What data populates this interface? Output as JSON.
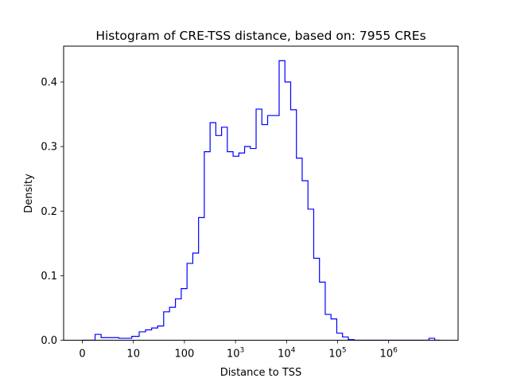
{
  "chart_data": {
    "type": "histogram",
    "title": "Histogram of CRE-TSS distance, based on: 7955 CREs",
    "xlabel": "Distance to TSS",
    "ylabel": "Density",
    "x_scale": "symlog",
    "x_tick_labels": [
      {
        "value": 0,
        "base": "0",
        "exp": ""
      },
      {
        "value": 10,
        "base": "10",
        "exp": ""
      },
      {
        "value": 100,
        "base": "100",
        "exp": ""
      },
      {
        "value": 1000,
        "base": "10",
        "exp": "3"
      },
      {
        "value": 10000,
        "base": "10",
        "exp": "4"
      },
      {
        "value": 100000,
        "base": "10",
        "exp": "5"
      },
      {
        "value": 1000000,
        "base": "10",
        "exp": "6"
      }
    ],
    "y_ticks": [
      "0.0",
      "0.1",
      "0.2",
      "0.3",
      "0.4"
    ],
    "ylim": [
      0,
      0.45
    ],
    "step_color": "#0000ff",
    "bin_edges": [
      0,
      1.55,
      2.5,
      3.68,
      5.2,
      7.16,
      9.7,
      13.0,
      17.3,
      22.8,
      29.9,
      39.2,
      51.1,
      66.6,
      86.6,
      112.4,
      145.8,
      189,
      245,
      318,
      412,
      534,
      692,
      897,
      1163,
      1508,
      1955,
      2534,
      3285,
      4259,
      5522,
      7160,
      9285,
      12040,
      15610,
      20240,
      26250,
      34040,
      44140,
      57240,
      74240,
      96270,
      124800,
      161900,
      209900,
      272200,
      353000,
      457800,
      593600,
      769800,
      998200,
      1294000,
      1679000,
      2177000,
      2823000,
      3661000,
      4747000,
      6156000,
      7983000,
      10350000
    ],
    "densities": [
      0.0,
      0.0,
      0.009,
      0.004,
      0.004,
      0.003,
      0.006,
      0.013,
      0.016,
      0.019,
      0.022,
      0.044,
      0.051,
      0.064,
      0.08,
      0.119,
      0.135,
      0.19,
      0.292,
      0.337,
      0.317,
      0.33,
      0.292,
      0.285,
      0.29,
      0.3,
      0.297,
      0.358,
      0.334,
      0.348,
      0.348,
      0.433,
      0.4,
      0.357,
      0.282,
      0.247,
      0.203,
      0.127,
      0.09,
      0.04,
      0.033,
      0.011,
      0.005,
      0.001,
      0.0,
      0.0,
      0.0,
      0.0,
      0.0,
      0.0,
      0.0,
      0.0,
      0.0,
      0.0,
      0.0,
      0.0,
      0.0,
      0.003,
      0.0
    ]
  }
}
